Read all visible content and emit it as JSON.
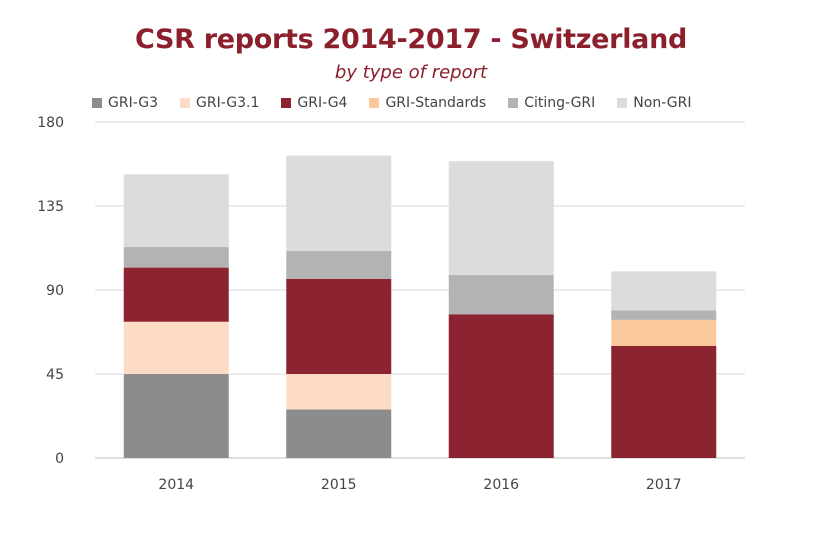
{
  "chart_data": {
    "type": "bar",
    "stacked": true,
    "title": "CSR reports 2014-2017 - Switzerland",
    "subtitle": "by type of report",
    "categories": [
      "2014",
      "2015",
      "2016",
      "2017"
    ],
    "ylim": [
      0,
      180
    ],
    "yticks": [
      0,
      45,
      90,
      135,
      180
    ],
    "grid": true,
    "legend_position": "top",
    "series": [
      {
        "name": "GRI-G3",
        "color": "#8c8c8c",
        "values": [
          45,
          26,
          0,
          0
        ]
      },
      {
        "name": "GRI-G3.1",
        "color": "#fddcc6",
        "values": [
          28,
          19,
          0,
          0
        ]
      },
      {
        "name": "GRI-G4",
        "color": "#8c2330",
        "values": [
          29,
          51,
          77,
          60
        ]
      },
      {
        "name": "GRI-Standards",
        "color": "#f9c99c",
        "values": [
          0,
          0,
          0,
          14
        ]
      },
      {
        "name": "Citing-GRI",
        "color": "#b3b3b3",
        "values": [
          11,
          15,
          21,
          5
        ]
      },
      {
        "name": "Non-GRI",
        "color": "#dcdcdc",
        "values": [
          39,
          51,
          61,
          21
        ]
      }
    ]
  }
}
